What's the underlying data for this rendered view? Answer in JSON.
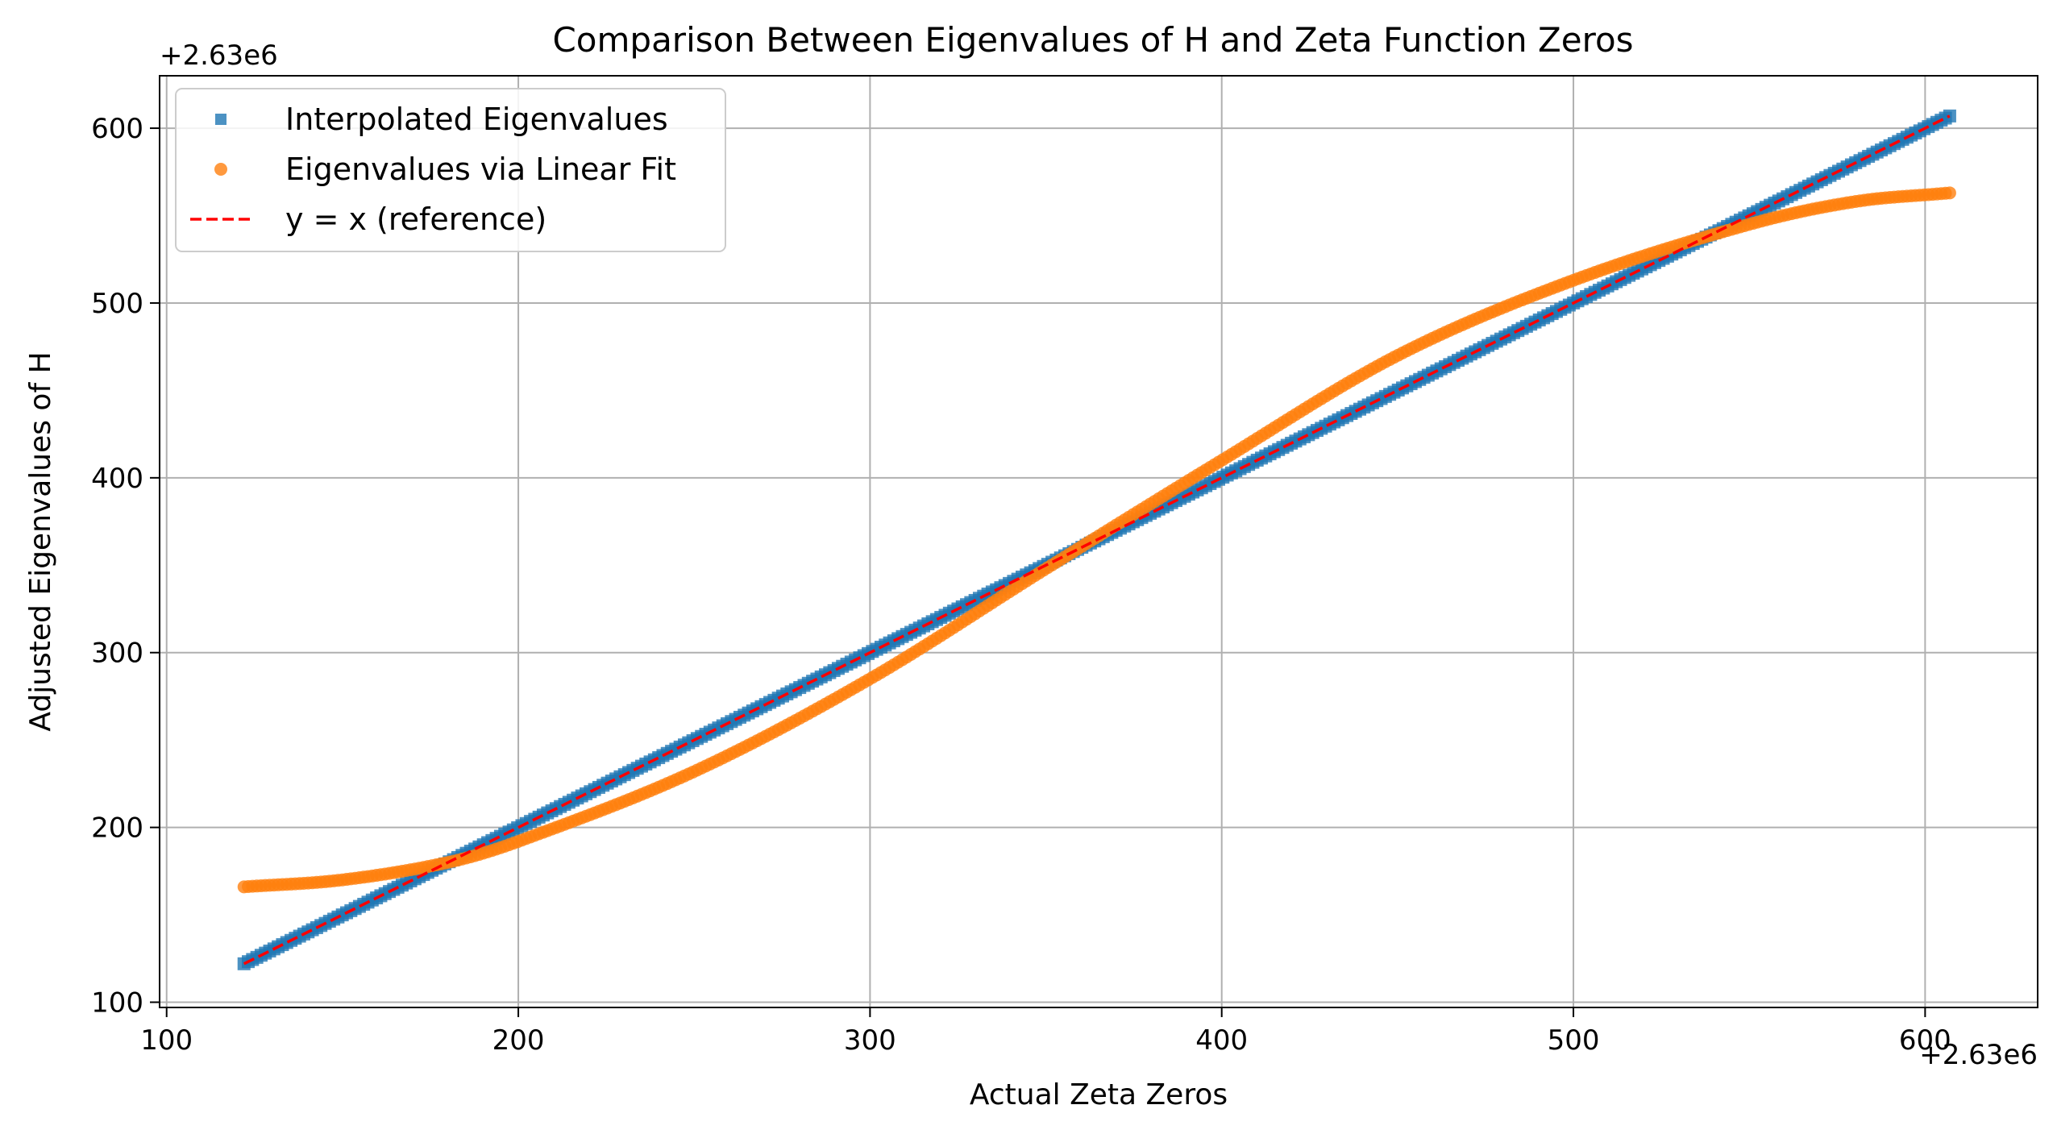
{
  "chart_data": {
    "type": "scatter",
    "title": "Comparison Between Eigenvalues of H and Zeta Function Zeros",
    "xlabel": "Actual Zeta Zeros",
    "ylabel": "Adjusted Eigenvalues of H",
    "x_offset_label": "+2.63e6",
    "y_offset_label": "+2.63e6",
    "xlim": [
      98,
      632
    ],
    "ylim": [
      97,
      630
    ],
    "x_ticks": [
      100,
      200,
      300,
      400,
      500,
      600
    ],
    "y_ticks": [
      100,
      200,
      300,
      400,
      500,
      600
    ],
    "grid": true,
    "legend_position": "top-left",
    "series": [
      {
        "name": "Interpolated Eigenvalues",
        "kind": "scatter",
        "marker": "square",
        "color": "#1f77b4",
        "x_range": [
          122,
          607
        ],
        "point_count": 400,
        "formula": "y = x"
      },
      {
        "name": "Eigenvalues via Linear Fit",
        "kind": "scatter",
        "marker": "circle",
        "color": "#ff7f0e",
        "x_range": [
          122,
          607
        ],
        "point_count": 400,
        "points": [
          [
            122,
            166
          ],
          [
            150,
            170
          ],
          [
            180,
            180
          ],
          [
            200,
            192
          ],
          [
            250,
            232
          ],
          [
            300,
            285
          ],
          [
            350,
            348
          ],
          [
            400,
            410
          ],
          [
            450,
            470
          ],
          [
            500,
            513
          ],
          [
            550,
            545
          ],
          [
            580,
            558
          ],
          [
            607,
            563
          ]
        ]
      },
      {
        "name": "y = x (reference)",
        "kind": "line",
        "style": "dashed",
        "color": "#ff0000",
        "points": [
          [
            122,
            122
          ],
          [
            607,
            607
          ]
        ]
      }
    ]
  }
}
